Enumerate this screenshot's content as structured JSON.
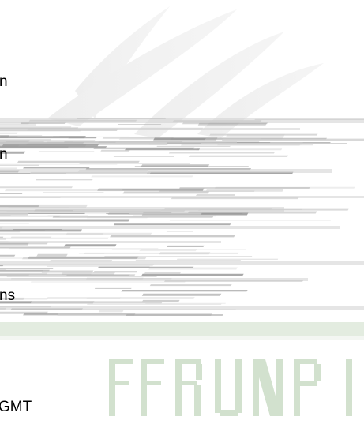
{
  "fragments": [
    "n",
    "n",
    "ns",
    "GMT"
  ],
  "watermark": {
    "text": "",
    "colors": {
      "swoosh": "#e6e6e6",
      "stripes_dark": "#9a9a9a",
      "stripes_light": "#cfcfcf",
      "green_band": "#dde8d9",
      "logo_green": "#c6d7c1"
    }
  }
}
